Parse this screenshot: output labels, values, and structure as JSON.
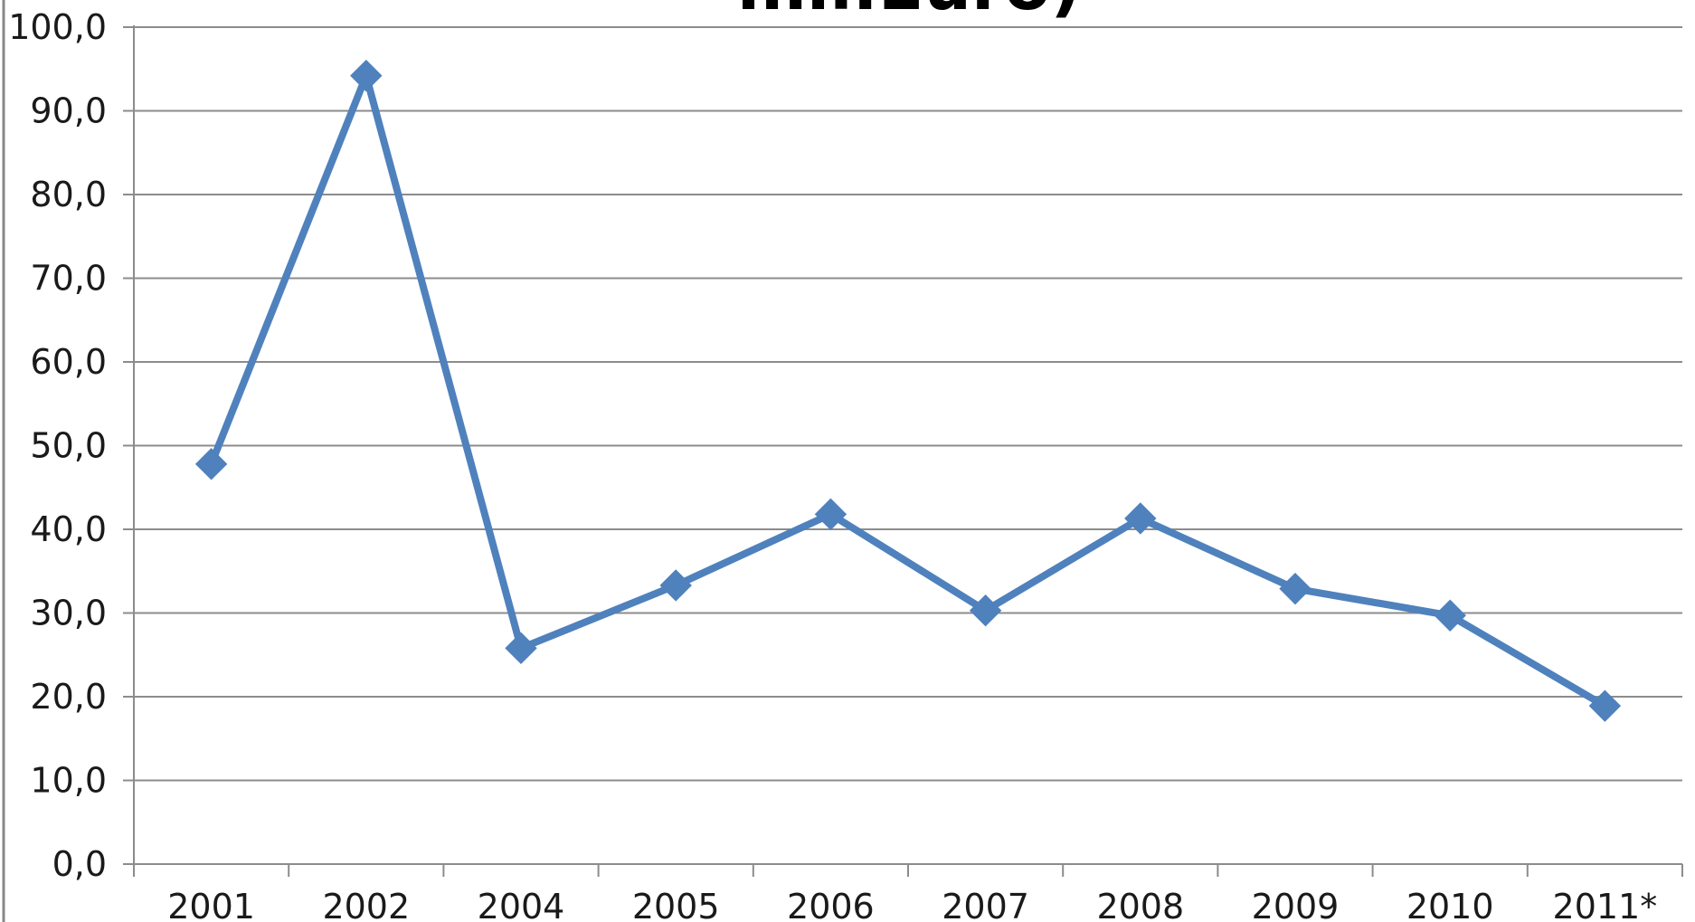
{
  "chart_data": {
    "type": "line",
    "title": "mil.Euro)",
    "categories": [
      "2001",
      "2002",
      "2004",
      "2005",
      "2006",
      "2007",
      "2008",
      "2009",
      "2010",
      "2011*"
    ],
    "series": [
      {
        "values": [
          47.8,
          94.2,
          25.8,
          33.3,
          41.8,
          30.3,
          41.3,
          32.9,
          29.7,
          18.9
        ]
      }
    ],
    "ylim": [
      0,
      100
    ],
    "y_ticks": [
      "0,0",
      "10,0",
      "20,0",
      "30,0",
      "40,0",
      "50,0",
      "60,0",
      "70,0",
      "80,0",
      "90,0",
      "100,0"
    ],
    "grid": true,
    "legend": "none",
    "marker": "diamond",
    "colors": {
      "series": "#4f81bd",
      "grid": "#8c8c8c",
      "axis": "#8c8c8c",
      "text": "#1a1a1a"
    }
  }
}
